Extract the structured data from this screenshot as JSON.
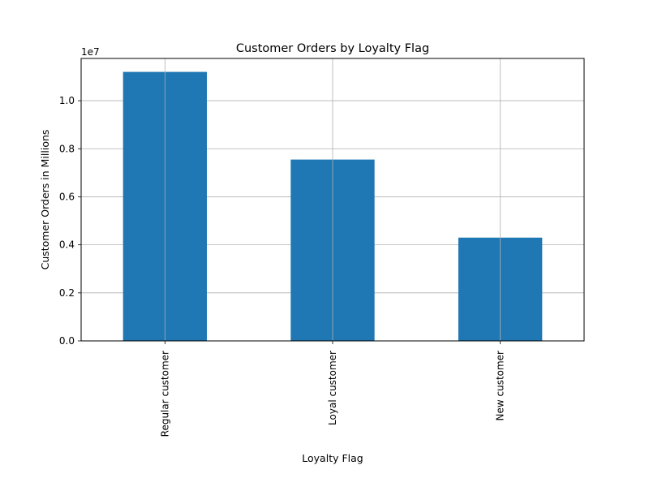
{
  "chart_data": {
    "type": "bar",
    "title": "Customer Orders by Loyalty Flag",
    "xlabel": "Loyalty Flag",
    "ylabel": "Customer Orders in Millions",
    "offset_label": "1e7",
    "categories": [
      "Regular customer",
      "Loyal customer",
      "New customer"
    ],
    "values": [
      11200000,
      7550000,
      4300000
    ],
    "ylim": [
      0,
      11760000
    ],
    "yticks": [
      0,
      2000000,
      4000000,
      6000000,
      8000000,
      10000000
    ],
    "ytick_labels": [
      "0.0",
      "0.2",
      "0.4",
      "0.6",
      "0.8",
      "1.0"
    ],
    "grid": true,
    "legend": false,
    "bar_color": "#1f77b4",
    "grid_color": "#b0b0b0"
  }
}
